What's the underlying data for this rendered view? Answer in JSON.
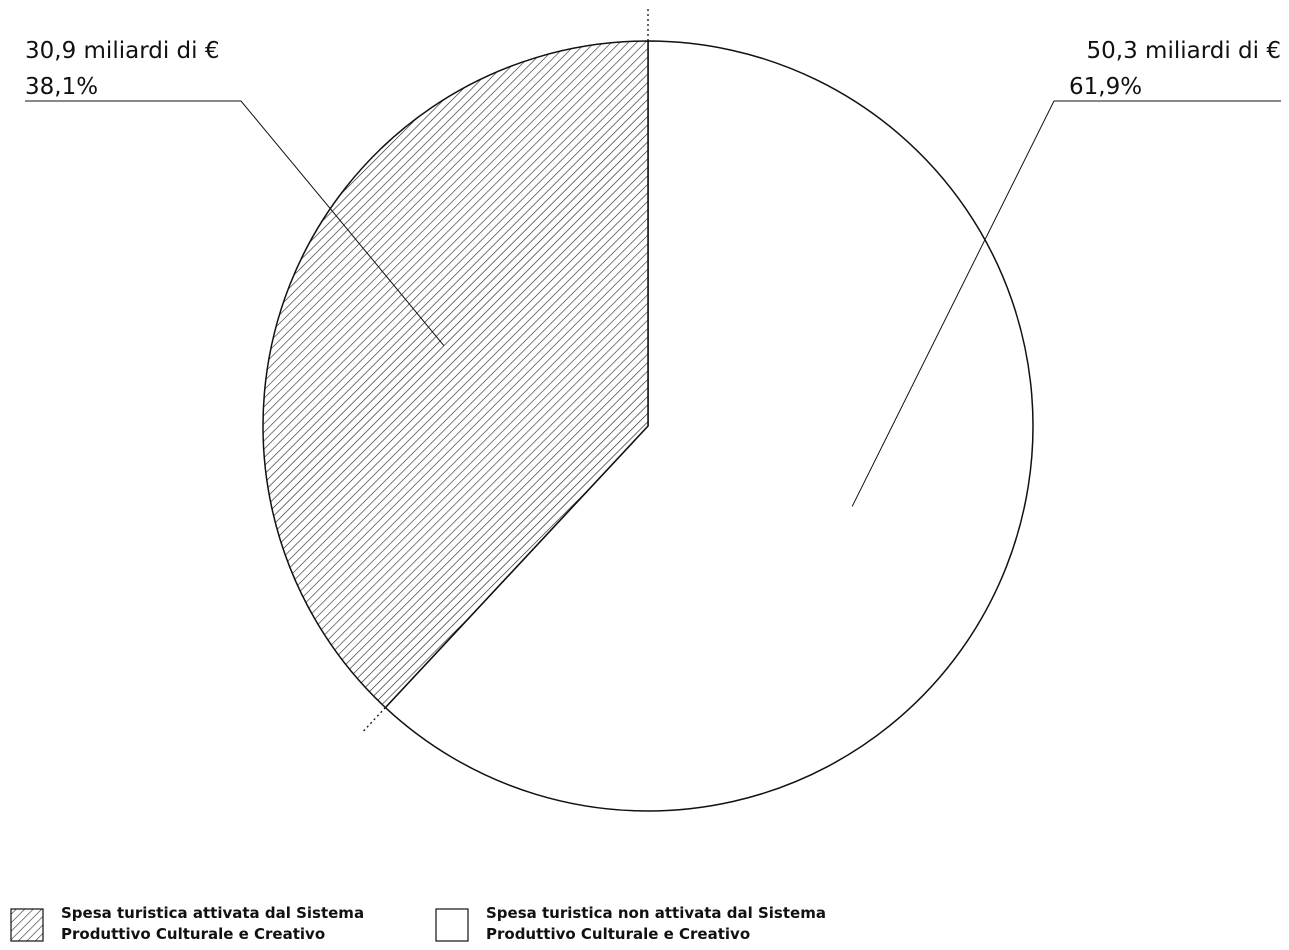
{
  "chart_data": {
    "type": "pie",
    "title": "",
    "series": [
      {
        "name": "Spesa turistica attivata dal Sistema Produttivo Culturale e Creativo",
        "legend_lines": [
          "Spesa turistica attivata dal Sistema",
          "Produttivo Culturale e Creativo"
        ],
        "value": 30.9,
        "percent": 38.1,
        "value_label": "30,9 miliardi di €",
        "percent_label": "38,1%",
        "fill": "hatched"
      },
      {
        "name": "Spesa turistica non attivata dal Sistema Produttivo Culturale e Creativo",
        "legend_lines": [
          "Spesa turistica non attivata dal Sistema",
          "Produttivo Culturale e Creativo"
        ],
        "value": 50.3,
        "percent": 61.9,
        "value_label": "50,3 miliardi di €",
        "percent_label": "61,9%",
        "fill": "white"
      }
    ],
    "legend_position": "bottom-left",
    "colors": {
      "stroke": "#111111",
      "background": "#ffffff"
    }
  }
}
